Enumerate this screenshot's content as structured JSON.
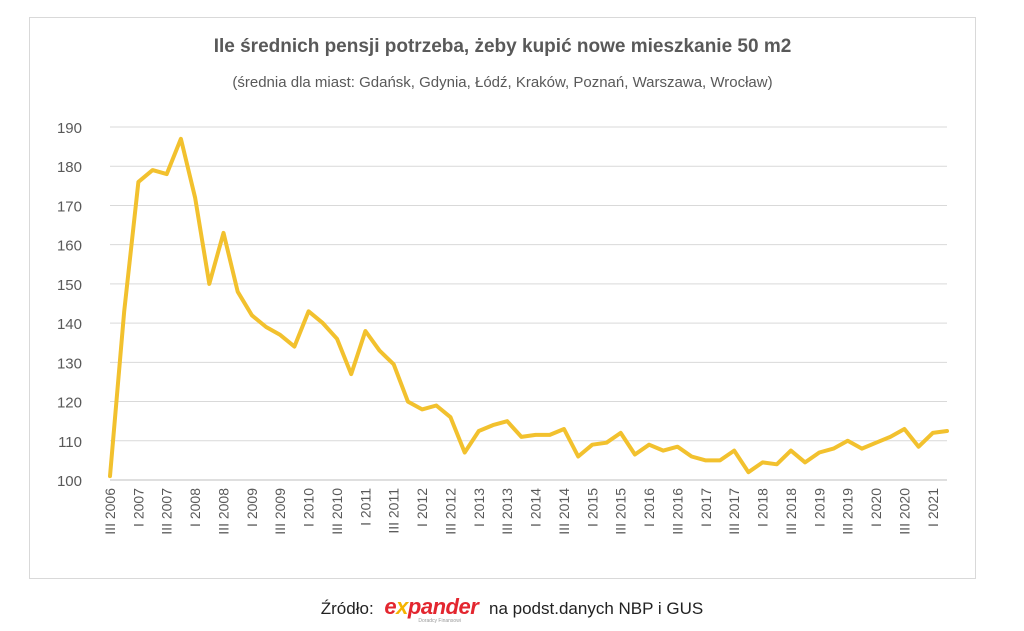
{
  "chart_data": {
    "type": "line",
    "title": "Ile średnich pensji potrzeba, żeby kupić nowe mieszkanie 50 m2",
    "subtitle": "(średnia dla miast: Gdańsk, Gdynia, Łódź, Kraków, Poznań, Warszawa, Wrocław)",
    "xlabel": "",
    "ylabel": "",
    "ylim": [
      100,
      190
    ],
    "yticks": [
      100,
      110,
      120,
      130,
      140,
      150,
      160,
      170,
      180,
      190
    ],
    "grid": true,
    "legend": "none",
    "line_color": "#f2c12e",
    "x_tick_labels": [
      "III 2006",
      "I 2007",
      "III 2007",
      "I 2008",
      "III 2008",
      "I 2009",
      "III 2009",
      "I 2010",
      "III 2010",
      "I 2011",
      "III 2011",
      "I 2012",
      "III 2012",
      "I 2013",
      "III 2013",
      "I 2014",
      "III 2014",
      "I 2015",
      "III 2015",
      "I 2016",
      "III 2016",
      "I 2017",
      "III 2017",
      "I 2018",
      "III 2018",
      "I 2019",
      "III 2019",
      "I 2020",
      "III 2020",
      "I 2021"
    ],
    "series": [
      {
        "values": [
          101,
          143,
          176,
          179,
          178,
          187,
          172,
          150,
          163,
          148,
          142,
          139,
          137,
          134,
          143,
          140,
          136,
          127,
          138,
          133,
          129.5,
          120,
          118,
          119,
          116,
          107,
          112.5,
          114,
          115,
          111,
          111.5,
          111.5,
          113,
          106,
          109,
          109.5,
          112,
          106.5,
          109,
          107.5,
          108.5,
          106,
          105,
          105,
          107.5,
          102,
          104.5,
          104,
          107.5,
          104.5,
          107,
          108,
          110,
          108,
          109.5,
          111,
          113,
          108.5,
          112,
          112.5
        ]
      }
    ]
  },
  "footer": {
    "source_label": "Źródło:",
    "brand_pre": "e",
    "brand_x": "x",
    "brand_post": "pander",
    "brand_tagline": "Doradcy Finansowi",
    "source_rest": "na podst.danych NBP i GUS"
  }
}
